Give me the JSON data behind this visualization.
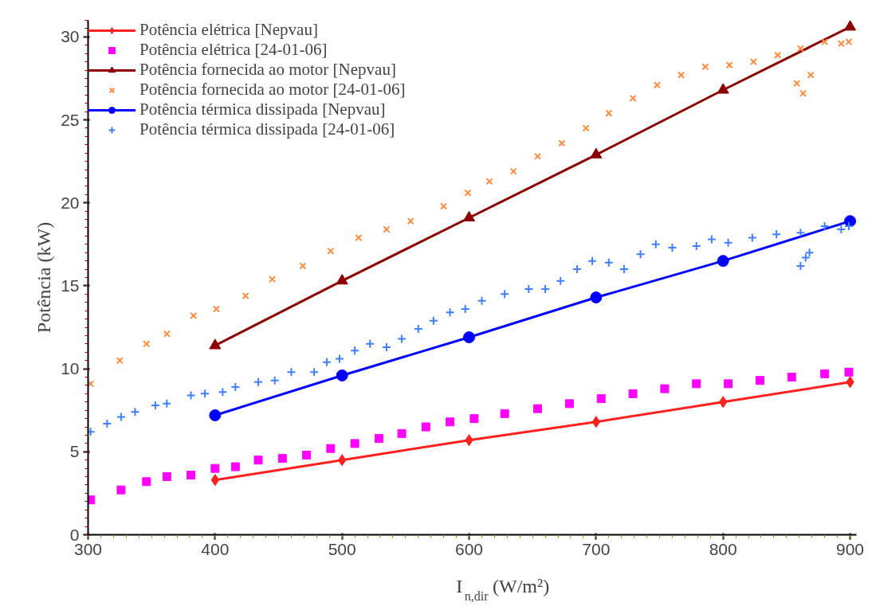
{
  "chart_data": {
    "type": "line",
    "xlabel": "I$_{n,dir}$ (W/m²)",
    "ylabel": "Potência (kW)",
    "xlim": [
      300,
      905
    ],
    "ylim": [
      0,
      31
    ],
    "xticks": [
      300,
      400,
      500,
      600,
      700,
      800,
      900
    ],
    "yticks": [
      0,
      5,
      10,
      15,
      20,
      25,
      30
    ],
    "grid": false,
    "legend": "top left",
    "series": [
      {
        "name": "Potência elétrica [Nepvau]",
        "type": "line",
        "marker": "diamond",
        "color": "#ff2020",
        "x": [
          400,
          500,
          600,
          700,
          800,
          900
        ],
        "values": [
          3.3,
          4.5,
          5.7,
          6.8,
          8.0,
          9.2
        ]
      },
      {
        "name": "Potência elétrica [24-01-06]",
        "type": "scatter",
        "marker": "square",
        "color": "#ff00ff",
        "x": [
          302,
          326,
          346,
          362,
          381,
          400,
          416,
          434,
          453,
          472,
          491,
          510,
          529,
          547,
          566,
          585,
          604,
          628,
          654,
          679,
          704,
          729,
          754,
          779,
          804,
          829,
          854,
          880,
          899
        ],
        "values": [
          2.1,
          2.7,
          3.2,
          3.5,
          3.6,
          4.0,
          4.1,
          4.5,
          4.6,
          4.8,
          5.2,
          5.5,
          5.8,
          6.1,
          6.5,
          6.8,
          7.0,
          7.3,
          7.6,
          7.9,
          8.2,
          8.5,
          8.8,
          9.1,
          9.1,
          9.3,
          9.5,
          9.7,
          9.8
        ]
      },
      {
        "name": "Potência fornecida ao motor [Nepvau]",
        "type": "line",
        "marker": "triangle",
        "color": "#8b0000",
        "x": [
          400,
          500,
          600,
          700,
          800,
          900
        ],
        "values": [
          11.4,
          15.3,
          19.1,
          22.9,
          26.8,
          30.6
        ]
      },
      {
        "name": "Potência fornecida ao motor [24-01-06]",
        "type": "scatter",
        "marker": "x",
        "color": "#ff8c40",
        "x": [
          302,
          325,
          346,
          362,
          383,
          401,
          424,
          445,
          469,
          491,
          513,
          535,
          554,
          580,
          599,
          616,
          635,
          654,
          673,
          692,
          710,
          729,
          748,
          767,
          786,
          805,
          824,
          843,
          858,
          861,
          863,
          869,
          880,
          893,
          899
        ],
        "values": [
          9.1,
          10.5,
          11.5,
          12.1,
          13.2,
          13.6,
          14.4,
          15.4,
          16.2,
          17.1,
          17.9,
          18.4,
          18.9,
          19.8,
          20.6,
          21.3,
          21.9,
          22.8,
          23.6,
          24.5,
          25.4,
          26.3,
          27.1,
          27.7,
          28.2,
          28.3,
          28.5,
          28.9,
          27.2,
          29.3,
          26.6,
          27.7,
          29.7,
          29.6,
          29.7
        ]
      },
      {
        "name": "Potência térmica dissipada [Nepvau]",
        "type": "line",
        "marker": "circle",
        "color": "#0000ff",
        "x": [
          400,
          500,
          600,
          700,
          800,
          900
        ],
        "values": [
          7.2,
          9.6,
          11.9,
          14.3,
          16.5,
          18.9
        ]
      },
      {
        "name": "Potência térmica dissipada [24-01-06]",
        "type": "scatter",
        "marker": "cross",
        "color": "#4080ff",
        "x": [
          302,
          315,
          326,
          337,
          353,
          362,
          381,
          392,
          406,
          416,
          434,
          447,
          460,
          478,
          488,
          498,
          510,
          522,
          535,
          547,
          560,
          572,
          585,
          597,
          610,
          628,
          647,
          660,
          672,
          685,
          697,
          710,
          722,
          735,
          747,
          760,
          779,
          791,
          804,
          823,
          842,
          861,
          861,
          865,
          868,
          880,
          893,
          899
        ],
        "values": [
          6.2,
          6.7,
          7.1,
          7.4,
          7.8,
          7.9,
          8.4,
          8.5,
          8.6,
          8.9,
          9.2,
          9.3,
          9.8,
          9.8,
          10.4,
          10.6,
          11.1,
          11.5,
          11.3,
          11.8,
          12.4,
          12.9,
          13.4,
          13.6,
          14.1,
          14.5,
          14.8,
          14.8,
          15.3,
          16.0,
          16.5,
          16.4,
          16.0,
          16.9,
          17.5,
          17.3,
          17.4,
          17.8,
          17.6,
          17.9,
          18.1,
          18.2,
          16.2,
          16.7,
          17.0,
          18.6,
          18.4,
          18.6
        ]
      }
    ]
  }
}
